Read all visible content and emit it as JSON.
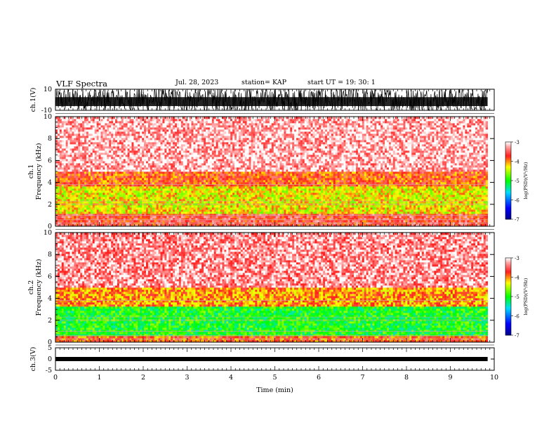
{
  "header": {
    "title": "VLF Spectra",
    "date": "Jul. 28, 2023",
    "station": "station= KAP",
    "start": "start  UT =  19: 30: 1"
  },
  "chart_data": [
    {
      "type": "line",
      "panel": "ch1-waveform",
      "ylabel": "ch.1(V)",
      "yticks": [
        "10",
        "-10"
      ],
      "ylim": [
        -10,
        10
      ],
      "x_range": [
        0,
        9.85
      ],
      "note_visible": "dense noise waveform clipping near +/-10 V"
    },
    {
      "type": "heatmap",
      "panel": "ch1-spectrogram",
      "ylabel": "ch.1\nFrequency (kHz)",
      "yticks": [
        0,
        2,
        4,
        6,
        8,
        10
      ],
      "ylim": [
        0,
        10
      ],
      "x_range": [
        0,
        9.85
      ],
      "colorbar": {
        "label": "log(PSD)(V²/Hz)",
        "ticks": [
          "-3",
          "-4",
          "-5",
          "-6",
          "-7"
        ],
        "range": [
          -7,
          -3
        ]
      },
      "bands": [
        {
          "from_khz": 0,
          "to_khz": 1.2,
          "level": -3.6
        },
        {
          "from_khz": 1.2,
          "to_khz": 3.6,
          "level": -4.3
        },
        {
          "from_khz": 3.6,
          "to_khz": 5.0,
          "level": -3.8
        },
        {
          "from_khz": 5.0,
          "to_khz": 10,
          "level": -3.2
        }
      ]
    },
    {
      "type": "heatmap",
      "panel": "ch2-spectrogram",
      "ylabel": "ch.2\nFrequency (kHz)",
      "yticks": [
        0,
        2,
        4,
        6,
        8,
        10
      ],
      "ylim": [
        0,
        10
      ],
      "x_range": [
        0,
        9.85
      ],
      "colorbar": {
        "label": "log(PSD)(V²/Hz)",
        "ticks": [
          "-3",
          "-4",
          "-5",
          "-6",
          "-7"
        ],
        "range": [
          -7,
          -3
        ]
      },
      "bands": [
        {
          "from_khz": 0,
          "to_khz": 0.6,
          "level": -3.8
        },
        {
          "from_khz": 0.6,
          "to_khz": 3.2,
          "level": -5.0
        },
        {
          "from_khz": 3.2,
          "to_khz": 5.0,
          "level": -4.0
        },
        {
          "from_khz": 5.0,
          "to_khz": 10,
          "level": -3.3
        }
      ]
    },
    {
      "type": "line",
      "panel": "ch3-waveform",
      "ylabel": "ch.3(V)",
      "yticks": [
        "5",
        "0",
        "-5"
      ],
      "ylim": [
        -5,
        5
      ],
      "x_range": [
        0,
        9.85
      ],
      "baseline": 0,
      "note_visible": "thick flat trace near 0 V"
    }
  ],
  "xaxis": {
    "label": "Time (min)",
    "ticks": [
      "0",
      "1",
      "2",
      "3",
      "4",
      "5",
      "6",
      "7",
      "8",
      "9",
      "10"
    ],
    "range": [
      0,
      10
    ]
  },
  "colors": {
    "waveform": "#000000",
    "white": "#ffffff",
    "red": "#ff2020",
    "yellow": "#ffff00",
    "green": "#00ff00",
    "blue": "#0000ff"
  }
}
